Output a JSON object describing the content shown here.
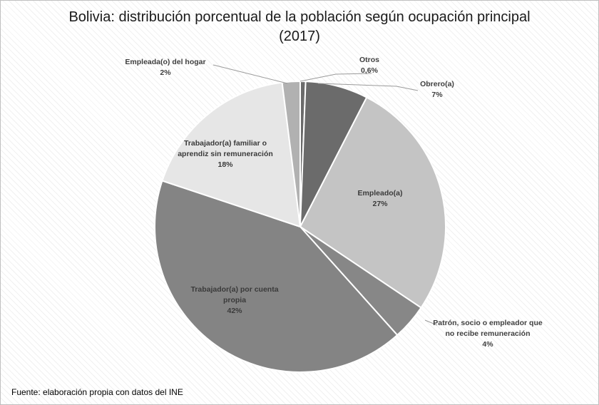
{
  "chart_data": {
    "type": "pie",
    "title_line1": "Bolivia: distribución porcentual de la población según ocupación principal",
    "title_line2": "(2017)",
    "slices": [
      {
        "name": "Otros",
        "value": 0.6,
        "value_label": "0,6%",
        "color": "#6b6b6b"
      },
      {
        "name": "Obrero(a)",
        "value": 7,
        "value_label": "7%",
        "color": "#6b6b6b"
      },
      {
        "name": "Empleado(a)",
        "value": 27,
        "value_label": "27%",
        "color": "#c4c4c4"
      },
      {
        "name": "Patrón, socio o empleador que no recibe remuneración",
        "value": 4,
        "value_label": "4%",
        "color": "#878787"
      },
      {
        "name": "Trabajador(a) por cuenta propia",
        "value": 42,
        "value_label": "42%",
        "color": "#848484"
      },
      {
        "name": "Trabajador(a) familiar o aprendiz sin remuneración",
        "value": 18,
        "value_label": "18%",
        "color": "#e6e6e6"
      },
      {
        "name": "Empleada(o) del hogar",
        "value": 2,
        "value_label": "2%",
        "color": "#b1b1b1"
      }
    ],
    "label_lines": [
      [
        "Otros",
        "0,6%"
      ],
      [
        "Obrero(a)",
        "7%"
      ],
      [
        "Empleado(a)",
        "27%"
      ],
      [
        "Patrón, socio o empleador que",
        "no recibe remuneración",
        "4%"
      ],
      [
        "Trabajador(a) por cuenta",
        "propia",
        "42%"
      ],
      [
        "Trabajador(a) familiar o",
        "aprendiz sin remuneración",
        "18%"
      ],
      [
        "Empleada(o) del hogar",
        "2%"
      ]
    ],
    "legend": "none"
  },
  "source": "Fuente:  elaboración propia con datos del INE"
}
